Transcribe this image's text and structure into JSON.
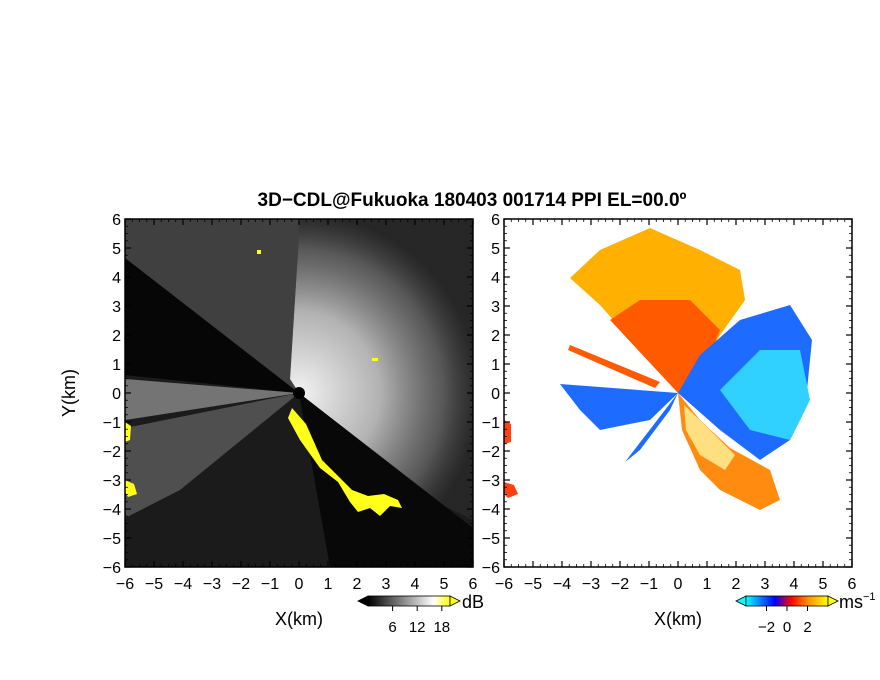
{
  "chart_data": {
    "type": "heatmap",
    "title": "3D−CDL@Fukuoka 180403 001714 PPI EL=00.0º",
    "panels": [
      {
        "id": "reflectivity",
        "xlabel": "X(km)",
        "ylabel": "Y(km)",
        "xlim": [
          -6,
          6
        ],
        "ylim": [
          -6,
          6
        ],
        "ticks": [
          -6,
          -5,
          -4,
          -3,
          -2,
          -1,
          0,
          1,
          2,
          3,
          4,
          5,
          6
        ],
        "tick_labels": [
          "−6",
          "−5",
          "−4",
          "−3",
          "−2",
          "−1",
          "0",
          "1",
          "2",
          "3",
          "4",
          "5",
          "6"
        ],
        "colorbar": {
          "unit": "dB",
          "ticks": [
            6,
            12,
            18
          ],
          "tick_labels": [
            "6",
            "12",
            "18"
          ],
          "colors": [
            "#000000",
            "#ffffff",
            "#ffff00"
          ]
        }
      },
      {
        "id": "velocity",
        "xlabel": "X(km)",
        "ylabel": "",
        "xlim": [
          -6,
          6
        ],
        "ylim": [
          -6,
          6
        ],
        "ticks": [
          -6,
          -5,
          -4,
          -3,
          -2,
          -1,
          0,
          1,
          2,
          3,
          4,
          5,
          6
        ],
        "tick_labels": [
          "−6",
          "−5",
          "−4",
          "−3",
          "−2",
          "−1",
          "0",
          "1",
          "2",
          "3",
          "4",
          "5",
          "6"
        ],
        "colorbar": {
          "unit": "ms",
          "unit_sup": "−1",
          "ticks": [
            -2,
            0,
            2
          ],
          "tick_labels": [
            "−2",
            "0",
            "2"
          ],
          "colors": [
            "#00ffff",
            "#0000ff",
            "#ff0000",
            "#ffa500",
            "#ffff00"
          ]
        }
      }
    ]
  }
}
